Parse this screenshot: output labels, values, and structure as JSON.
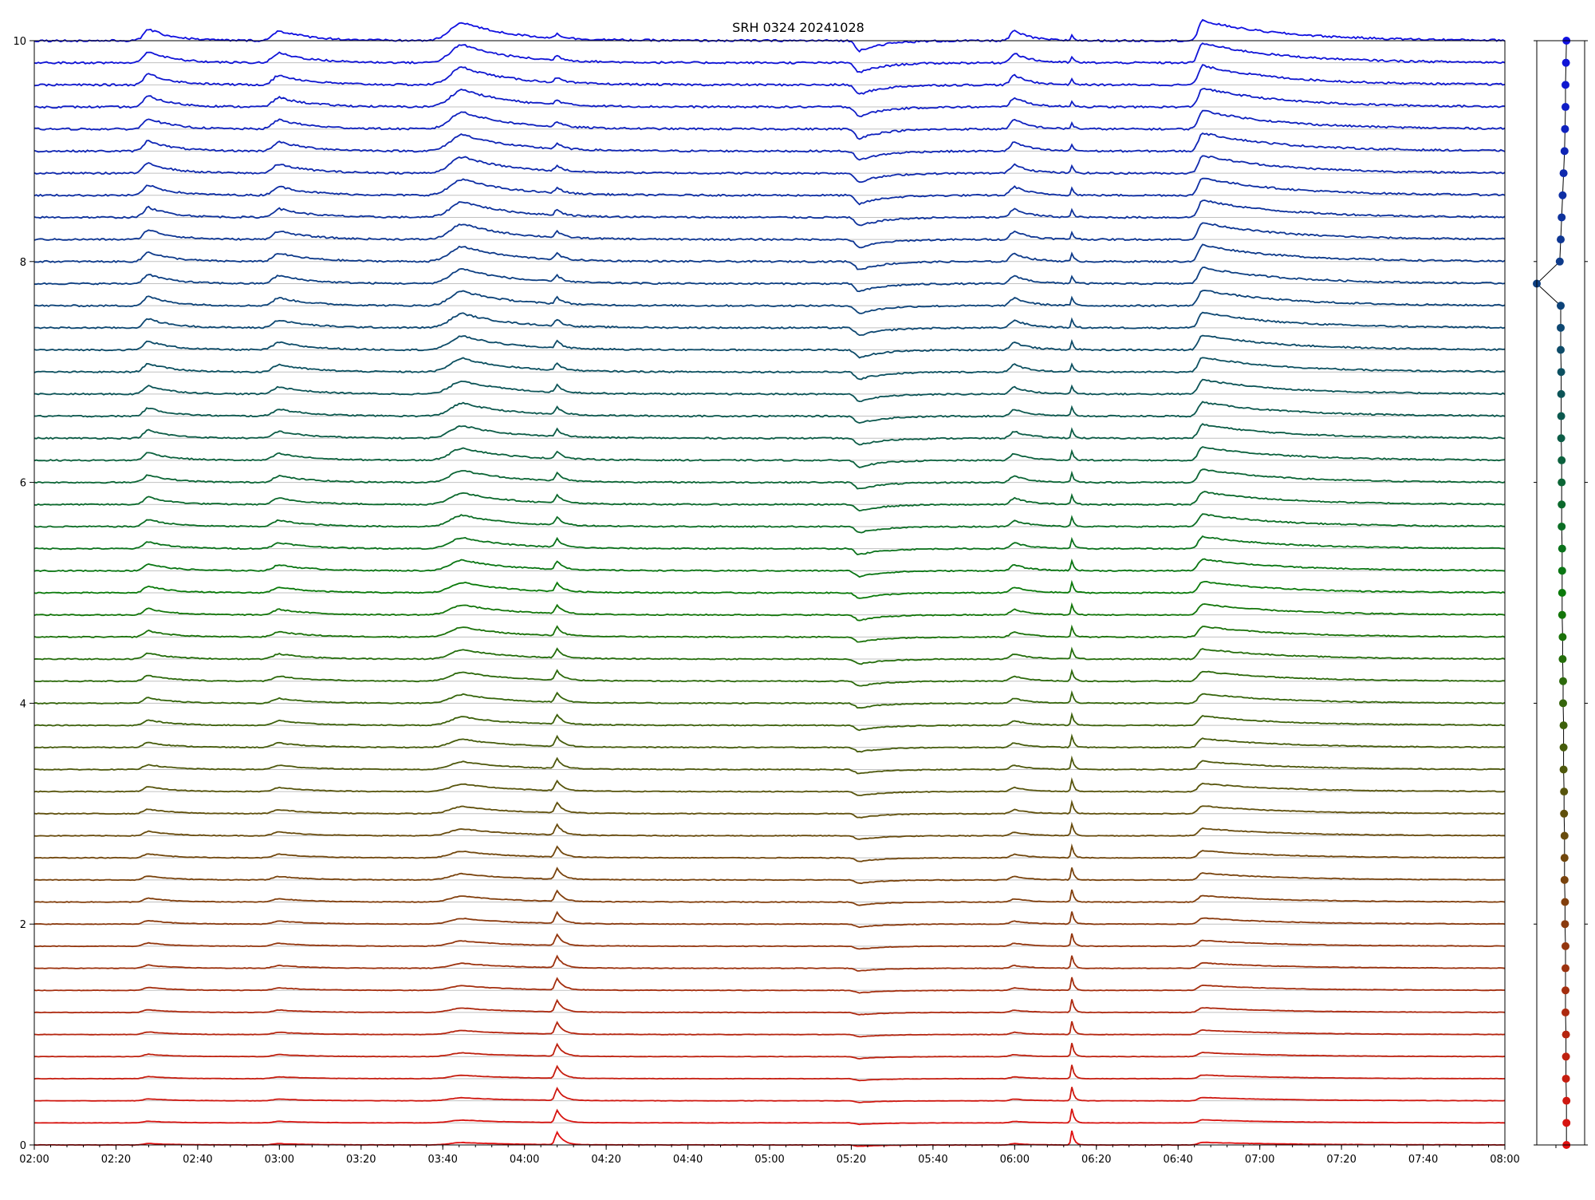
{
  "chart_data": [
    {
      "type": "line",
      "title": "SRH 0324 20241028",
      "xlabel": "",
      "ylabel": "",
      "xlim": [
        "02:00",
        "08:00"
      ],
      "ylim": [
        0,
        10
      ],
      "grid": "horizontal lines at each trace baseline",
      "legend": "none",
      "x_ticks": [
        "02:00",
        "02:20",
        "02:40",
        "03:00",
        "03:20",
        "03:40",
        "04:00",
        "04:20",
        "04:40",
        "05:00",
        "05:20",
        "05:40",
        "06:00",
        "06:20",
        "06:40",
        "07:00",
        "07:20",
        "07:40",
        "08:00"
      ],
      "y_ticks": [
        "0",
        "2",
        "4",
        "6",
        "8",
        "10"
      ],
      "trace_count": 51,
      "baseline_start": 0,
      "baseline_step": 0.2,
      "colors": {
        "low": "#e01010",
        "mid": "#0a7a0a",
        "high": "#1010e0"
      },
      "events": [
        {
          "time": "02:28",
          "amp": 0.035,
          "width": 1.2,
          "decay": 6
        },
        {
          "time": "03:00",
          "amp": 0.03,
          "width": 1.5,
          "decay": 8
        },
        {
          "time": "03:45",
          "amp": 0.055,
          "width": 3,
          "decay": 12
        },
        {
          "time": "04:08",
          "amp": 0.07,
          "width": 0.5,
          "decay": 1.5
        },
        {
          "time": "05:22",
          "amp": -0.03,
          "width": 1,
          "decay": 6
        },
        {
          "time": "06:00",
          "amp": 0.03,
          "width": 1,
          "decay": 4
        },
        {
          "time": "06:14",
          "amp": 0.08,
          "width": 0.25,
          "decay": 0.6
        },
        {
          "time": "06:46",
          "amp": 0.06,
          "width": 1,
          "decay": 20
        }
      ],
      "note_series": "each trace = baseline + event bumps scaled by index"
    },
    {
      "type": "scatter",
      "xlim": [
        0,
        1
      ],
      "ylim": [
        0,
        10
      ],
      "points_y_start": 0,
      "points_y_step": 0.2,
      "point_count": 51,
      "x_values": [
        0.62,
        0.62,
        0.62,
        0.61,
        0.61,
        0.61,
        0.6,
        0.6,
        0.6,
        0.6,
        0.59,
        0.59,
        0.58,
        0.58,
        0.58,
        0.57,
        0.57,
        0.56,
        0.56,
        0.56,
        0.55,
        0.55,
        0.54,
        0.54,
        0.53,
        0.53,
        0.53,
        0.53,
        0.52,
        0.52,
        0.52,
        0.52,
        0.51,
        0.51,
        0.51,
        0.51,
        0.5,
        0.5,
        0.5,
        0.0,
        0.48,
        0.5,
        0.52,
        0.54,
        0.56,
        0.58,
        0.59,
        0.6,
        0.6,
        0.61,
        0.62
      ]
    }
  ]
}
